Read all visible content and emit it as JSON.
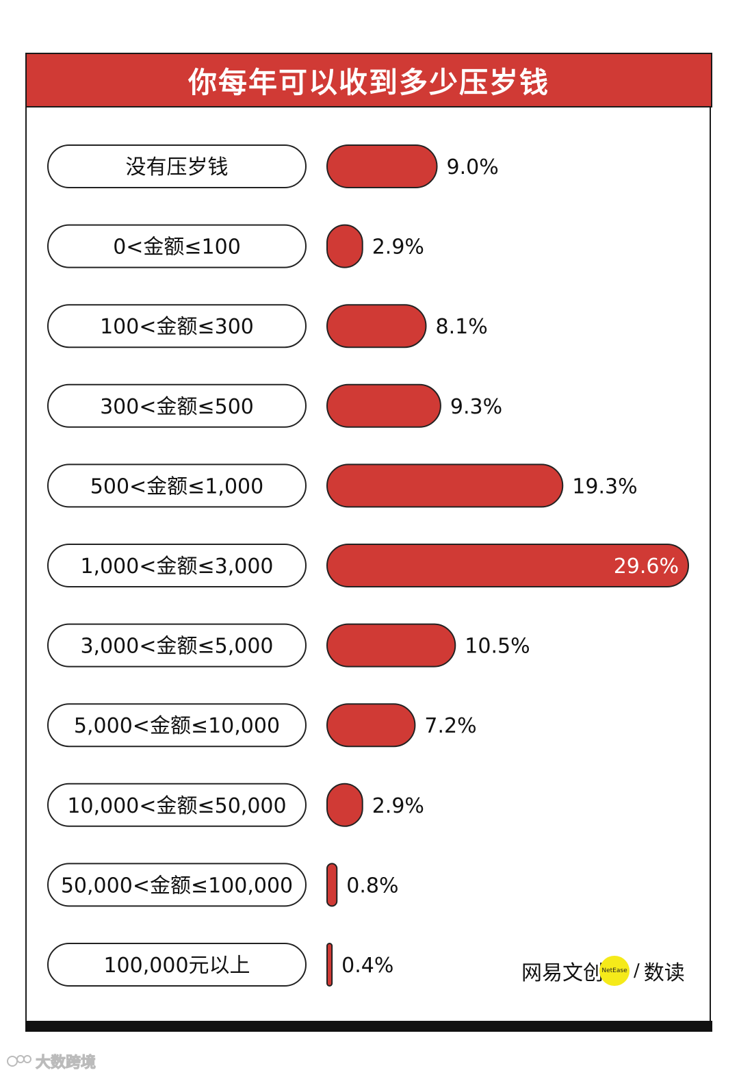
{
  "title": "你每年可以收到多少压岁钱",
  "chart_data": {
    "type": "bar",
    "orientation": "horizontal",
    "title": "你每年可以收到多少压岁钱",
    "categories": [
      "没有压岁钱",
      "0<金额≤100",
      "100<金额≤300",
      "300<金额≤500",
      "500<金额≤1,000",
      "1,000<金额≤3,000",
      "3,000<金额≤5,000",
      "5,000<金额≤10,000",
      "10,000<金额≤50,000",
      "50,000<金额≤100,000",
      "100,000元以上"
    ],
    "values": [
      9.0,
      2.9,
      8.1,
      9.3,
      19.3,
      29.6,
      10.5,
      7.2,
      2.9,
      0.8,
      0.4
    ],
    "value_labels": [
      "9.0%",
      "2.9%",
      "8.1%",
      "9.3%",
      "19.3%",
      "29.6%",
      "10.5%",
      "7.2%",
      "2.9%",
      "0.8%",
      "0.4%"
    ],
    "unit": "%",
    "bar_color": "#d03a35",
    "xlabel": "",
    "ylabel": "",
    "grid": false,
    "legend": "none"
  },
  "branding": {
    "left": "网易文创",
    "badge": "NetEase",
    "separator": "/",
    "right": "数读"
  },
  "watermark": "大数跨境",
  "colors": {
    "accent": "#d03a35",
    "badge": "#f5ea1a"
  }
}
